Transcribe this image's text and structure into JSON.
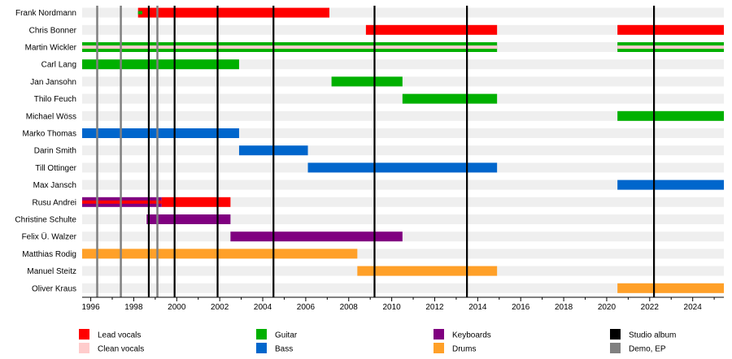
{
  "chart_data": {
    "type": "timeline",
    "title": "",
    "xlabel": "",
    "ylabel": "",
    "x_range": [
      1995.6,
      2025.45
    ],
    "x_ticks": [
      1996,
      1998,
      2000,
      2002,
      2004,
      2006,
      2008,
      2010,
      2012,
      2014,
      2016,
      2018,
      2020,
      2022,
      2024
    ],
    "members": [
      "Frank Nordmann",
      "Chris Bonner",
      "Martin Wickler",
      "Carl Lang",
      "Jan Jansohn",
      "Thilo Feuch",
      "Michael Wöss",
      "Marko Thomas",
      "Darin Smith",
      "Till Ottinger",
      "Max Jansch",
      "Rusu Andrei",
      "Christine Schulte",
      "Felix Ü. Walzer",
      "Matthias Rodig",
      "Manuel Steitz",
      "Oliver Kraus"
    ],
    "roles": [
      {
        "key": "lead_vocals",
        "name": "Lead vocals",
        "color": "#ff0000"
      },
      {
        "key": "clean_vocals",
        "name": "Clean vocals",
        "color": "#ffcccc"
      },
      {
        "key": "guitar",
        "name": "Guitar",
        "color": "#00b000"
      },
      {
        "key": "bass",
        "name": "Bass",
        "color": "#0066cc"
      },
      {
        "key": "keyboards",
        "name": "Keyboards",
        "color": "#800080"
      },
      {
        "key": "drums",
        "name": "Drums",
        "color": "#ffa028"
      },
      {
        "key": "studio_album",
        "name": "Studio album",
        "color": "#000000"
      },
      {
        "key": "demo_ep",
        "name": "Demo, EP",
        "color": "#808080"
      }
    ],
    "periods": [
      {
        "member": "Frank Nordmann",
        "role": "lead_vocals",
        "start": 1998.2,
        "end": 2007.1
      },
      {
        "member": "Frank Nordmann",
        "role": "guitar",
        "start": 1998.2,
        "end": 1998.4,
        "style": "stripe"
      },
      {
        "member": "Chris Bonner",
        "role": "lead_vocals",
        "start": 2008.8,
        "end": 2014.9
      },
      {
        "member": "Chris Bonner",
        "role": "lead_vocals",
        "start": 2020.5,
        "end": 2025.45
      },
      {
        "member": "Martin Wickler",
        "role": "guitar",
        "start": 1995.6,
        "end": 2014.9
      },
      {
        "member": "Martin Wickler",
        "role": "clean_vocals",
        "start": 1995.6,
        "end": 2014.9,
        "style": "stripe"
      },
      {
        "member": "Martin Wickler",
        "role": "guitar",
        "start": 2020.5,
        "end": 2025.45
      },
      {
        "member": "Martin Wickler",
        "role": "clean_vocals",
        "start": 2020.5,
        "end": 2025.45,
        "style": "stripe"
      },
      {
        "member": "Carl Lang",
        "role": "guitar",
        "start": 1995.6,
        "end": 2002.9
      },
      {
        "member": "Jan Jansohn",
        "role": "guitar",
        "start": 2007.2,
        "end": 2010.5
      },
      {
        "member": "Thilo Feuch",
        "role": "guitar",
        "start": 2010.5,
        "end": 2014.9
      },
      {
        "member": "Michael Wöss",
        "role": "guitar",
        "start": 2020.5,
        "end": 2025.45
      },
      {
        "member": "Marko Thomas",
        "role": "bass",
        "start": 1995.6,
        "end": 2002.9
      },
      {
        "member": "Darin Smith",
        "role": "bass",
        "start": 2002.9,
        "end": 2006.1
      },
      {
        "member": "Till Ottinger",
        "role": "bass",
        "start": 2006.1,
        "end": 2014.9
      },
      {
        "member": "Max Jansch",
        "role": "bass",
        "start": 2020.5,
        "end": 2025.45
      },
      {
        "member": "Rusu Andrei",
        "role": "keyboards",
        "start": 1995.6,
        "end": 1999.3
      },
      {
        "member": "Rusu Andrei",
        "role": "lead_vocals",
        "start": 1999.3,
        "end": 2002.5
      },
      {
        "member": "Rusu Andrei",
        "role": "lead_vocals",
        "start": 1995.6,
        "end": 1999.3,
        "style": "stripe"
      },
      {
        "member": "Christine Schulte",
        "role": "keyboards",
        "start": 1998.6,
        "end": 2002.5
      },
      {
        "member": "Felix Ü. Walzer",
        "role": "keyboards",
        "start": 2002.5,
        "end": 2010.5
      },
      {
        "member": "Matthias Rodig",
        "role": "drums",
        "start": 1995.6,
        "end": 2008.4
      },
      {
        "member": "Manuel Steitz",
        "role": "drums",
        "start": 2008.4,
        "end": 2014.9
      },
      {
        "member": "Oliver Kraus",
        "role": "drums",
        "start": 2020.5,
        "end": 2025.45
      }
    ],
    "events": [
      {
        "type": "demo_ep",
        "date": 1996.3
      },
      {
        "type": "demo_ep",
        "date": 1997.4
      },
      {
        "type": "demo_ep",
        "date": 1999.1
      },
      {
        "type": "studio_album",
        "date": 1998.7
      },
      {
        "type": "studio_album",
        "date": 1999.9
      },
      {
        "type": "studio_album",
        "date": 2001.9
      },
      {
        "type": "studio_album",
        "date": 2004.5
      },
      {
        "type": "studio_album",
        "date": 2009.2
      },
      {
        "type": "studio_album",
        "date": 2013.5
      },
      {
        "type": "studio_album",
        "date": 2022.2
      }
    ]
  }
}
